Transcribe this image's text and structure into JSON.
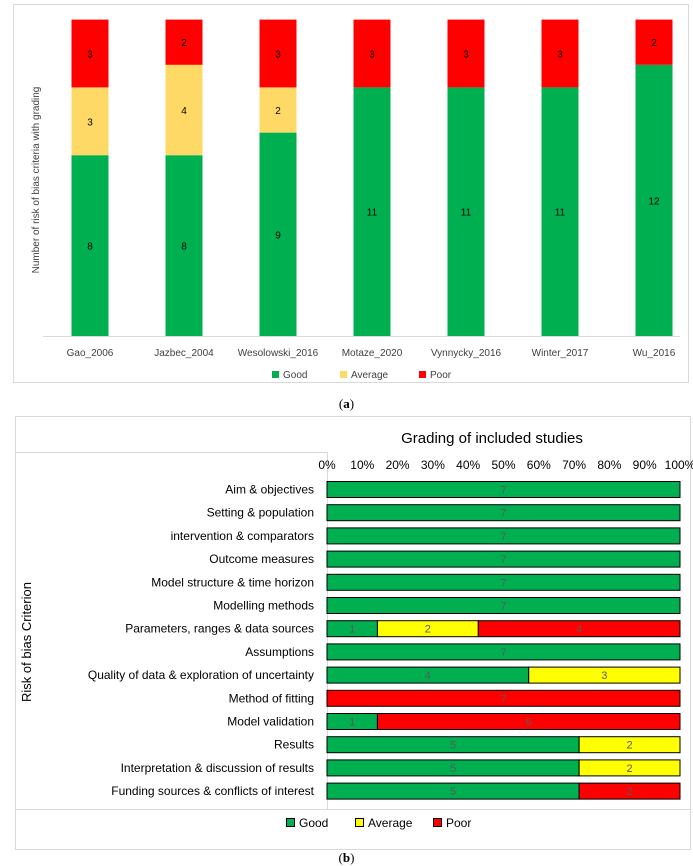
{
  "colors": {
    "good_a": "#00b050",
    "average_a": "#ffd966",
    "poor_a": "#ff0000",
    "good_b": "#00b050",
    "average_b": "#ffff00",
    "poor_b": "#ff0000"
  },
  "captions": {
    "a": "a",
    "b": "b"
  },
  "chart_data": [
    {
      "type": "bar",
      "stacked": true,
      "title": "",
      "xlabel": "",
      "ylabel": "Number of risk of bias criteria with grading",
      "categories": [
        "Gao_2006",
        "Jazbec_2004",
        "Wesolowski_2016",
        "Motaze_2020",
        "Vynnycky_2016",
        "Winter_2017",
        "Wu_2016"
      ],
      "series": [
        {
          "name": "Good",
          "values": [
            8,
            8,
            9,
            11,
            11,
            11,
            12
          ]
        },
        {
          "name": "Average",
          "values": [
            3,
            4,
            2,
            0,
            0,
            0,
            0
          ]
        },
        {
          "name": "Poor",
          "values": [
            3,
            2,
            3,
            3,
            3,
            3,
            2
          ]
        }
      ],
      "legend": [
        "Good",
        "Average",
        "Poor"
      ],
      "legend_position": "bottom"
    },
    {
      "type": "bar",
      "orientation": "horizontal",
      "stacked_percent": true,
      "title": "Grading of included studies",
      "ylabel": "Risk of bias Criterion",
      "x_ticks": [
        "0%",
        "10%",
        "20%",
        "30%",
        "40%",
        "50%",
        "60%",
        "70%",
        "80%",
        "90%",
        "100%"
      ],
      "categories": [
        "Aim & objectives",
        "Setting & population",
        "intervention & comparators",
        "Outcome measures",
        "Model structure & time horizon",
        "Modelling methods",
        "Parameters, ranges & data sources",
        "Assumptions",
        "Quality of data & exploration of uncertainty",
        "Method of fitting",
        "Model validation",
        "Results",
        "Interpretation & discussion of results",
        "Funding sources & conflicts of interest"
      ],
      "series": [
        {
          "name": "Good",
          "values": [
            7,
            7,
            7,
            7,
            7,
            7,
            1,
            7,
            4,
            0,
            1,
            5,
            5,
            5
          ]
        },
        {
          "name": "Average",
          "values": [
            0,
            0,
            0,
            0,
            0,
            0,
            2,
            0,
            3,
            0,
            0,
            2,
            2,
            0
          ]
        },
        {
          "name": "Poor",
          "values": [
            0,
            0,
            0,
            0,
            0,
            0,
            4,
            0,
            0,
            7,
            6,
            0,
            0,
            2
          ]
        }
      ],
      "legend": [
        "Good",
        "Average",
        "Poor"
      ],
      "legend_position": "bottom"
    }
  ]
}
